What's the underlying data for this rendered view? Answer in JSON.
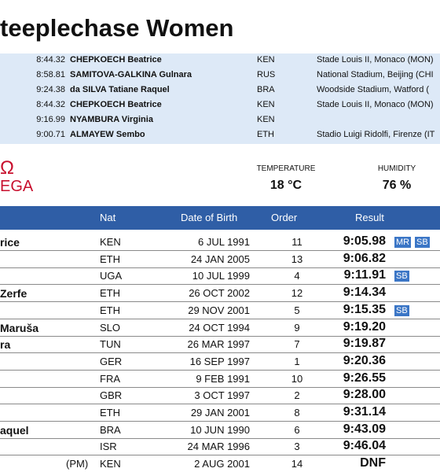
{
  "title": "teeplechase Women",
  "records": [
    {
      "time": "8:44.32",
      "name": "CHEPKOECH Beatrice",
      "nat": "KEN",
      "venue": "Stade Louis II, Monaco (MON)"
    },
    {
      "time": "8:58.81",
      "name": "SAMITOVA-GALKINA Gulnara",
      "nat": "RUS",
      "venue": "National Stadium, Beijing (CHI"
    },
    {
      "time": "9:24.38",
      "name": "da SILVA Tatiane Raquel",
      "nat": "BRA",
      "venue": "Woodside Stadium, Watford ("
    },
    {
      "time": "8:44.32",
      "name": "CHEPKOECH Beatrice",
      "nat": "KEN",
      "venue": "Stade Louis II, Monaco (MON)"
    },
    {
      "time": "9:16.99",
      "name": "NYAMBURA Virginia",
      "nat": "KEN",
      "venue": null
    },
    {
      "time": "9:00.71",
      "name": "ALMAYEW Sembo",
      "nat": "ETH",
      "venue": "Stadio Luigi Ridolfi, Firenze (IT"
    }
  ],
  "logo": {
    "symbol": "Ω",
    "text": "EGA"
  },
  "conditions": {
    "temperature_label": "TEMPERATURE",
    "temperature": "18 °C",
    "humidity_label": "HUMIDITY",
    "humidity": "76 %"
  },
  "table": {
    "headers": [
      "Nat",
      "Date of Birth",
      "Order",
      "Result"
    ],
    "rows": [
      {
        "name": "rice",
        "nat": "KEN",
        "dob": "6 JUL 1991",
        "order": "11",
        "result": "9:05.98",
        "badges": [
          "MR",
          "SB"
        ]
      },
      {
        "name": null,
        "nat": "ETH",
        "dob": "24 JAN 2005",
        "order": "13",
        "result": "9:06.82"
      },
      {
        "name": null,
        "nat": "UGA",
        "dob": "10 JUL 1999",
        "order": "4",
        "result": "9:11.91",
        "badges": [
          "SB"
        ]
      },
      {
        "name": "Zerfe",
        "nat": "ETH",
        "dob": "26 OCT 2002",
        "order": "12",
        "result": "9:14.34"
      },
      {
        "name": null,
        "nat": "ETH",
        "dob": "29 NOV 2001",
        "order": "5",
        "result": "9:15.35",
        "badges": [
          "SB"
        ]
      },
      {
        "name": "Maruša",
        "nat": "SLO",
        "dob": "24 OCT 1994",
        "order": "9",
        "result": "9:19.20"
      },
      {
        "name": "ra",
        "nat": "TUN",
        "dob": "26 MAR 1997",
        "order": "7",
        "result": "9:19.87"
      },
      {
        "name": null,
        "nat": "GER",
        "dob": "16 SEP 1997",
        "order": "1",
        "result": "9:20.36"
      },
      {
        "name": null,
        "nat": "FRA",
        "dob": "9 FEB 1991",
        "order": "10",
        "result": "9:26.55"
      },
      {
        "name": null,
        "nat": "GBR",
        "dob": "3 OCT 1997",
        "order": "2",
        "result": "9:28.00"
      },
      {
        "name": null,
        "nat": "ETH",
        "dob": "29 JAN 2001",
        "order": "8",
        "result": "9:31.14"
      },
      {
        "name": "aquel",
        "nat": "BRA",
        "dob": "10 JUN 1990",
        "order": "6",
        "result": "9:43.09"
      },
      {
        "name": null,
        "nat": "ISR",
        "dob": "24 MAR 1996",
        "order": "3",
        "result": "9:46.04"
      },
      {
        "name": null,
        "note": "(PM)",
        "nat": "KEN",
        "dob": "2 AUG 2001",
        "order": "14",
        "result": "DNF"
      }
    ]
  }
}
